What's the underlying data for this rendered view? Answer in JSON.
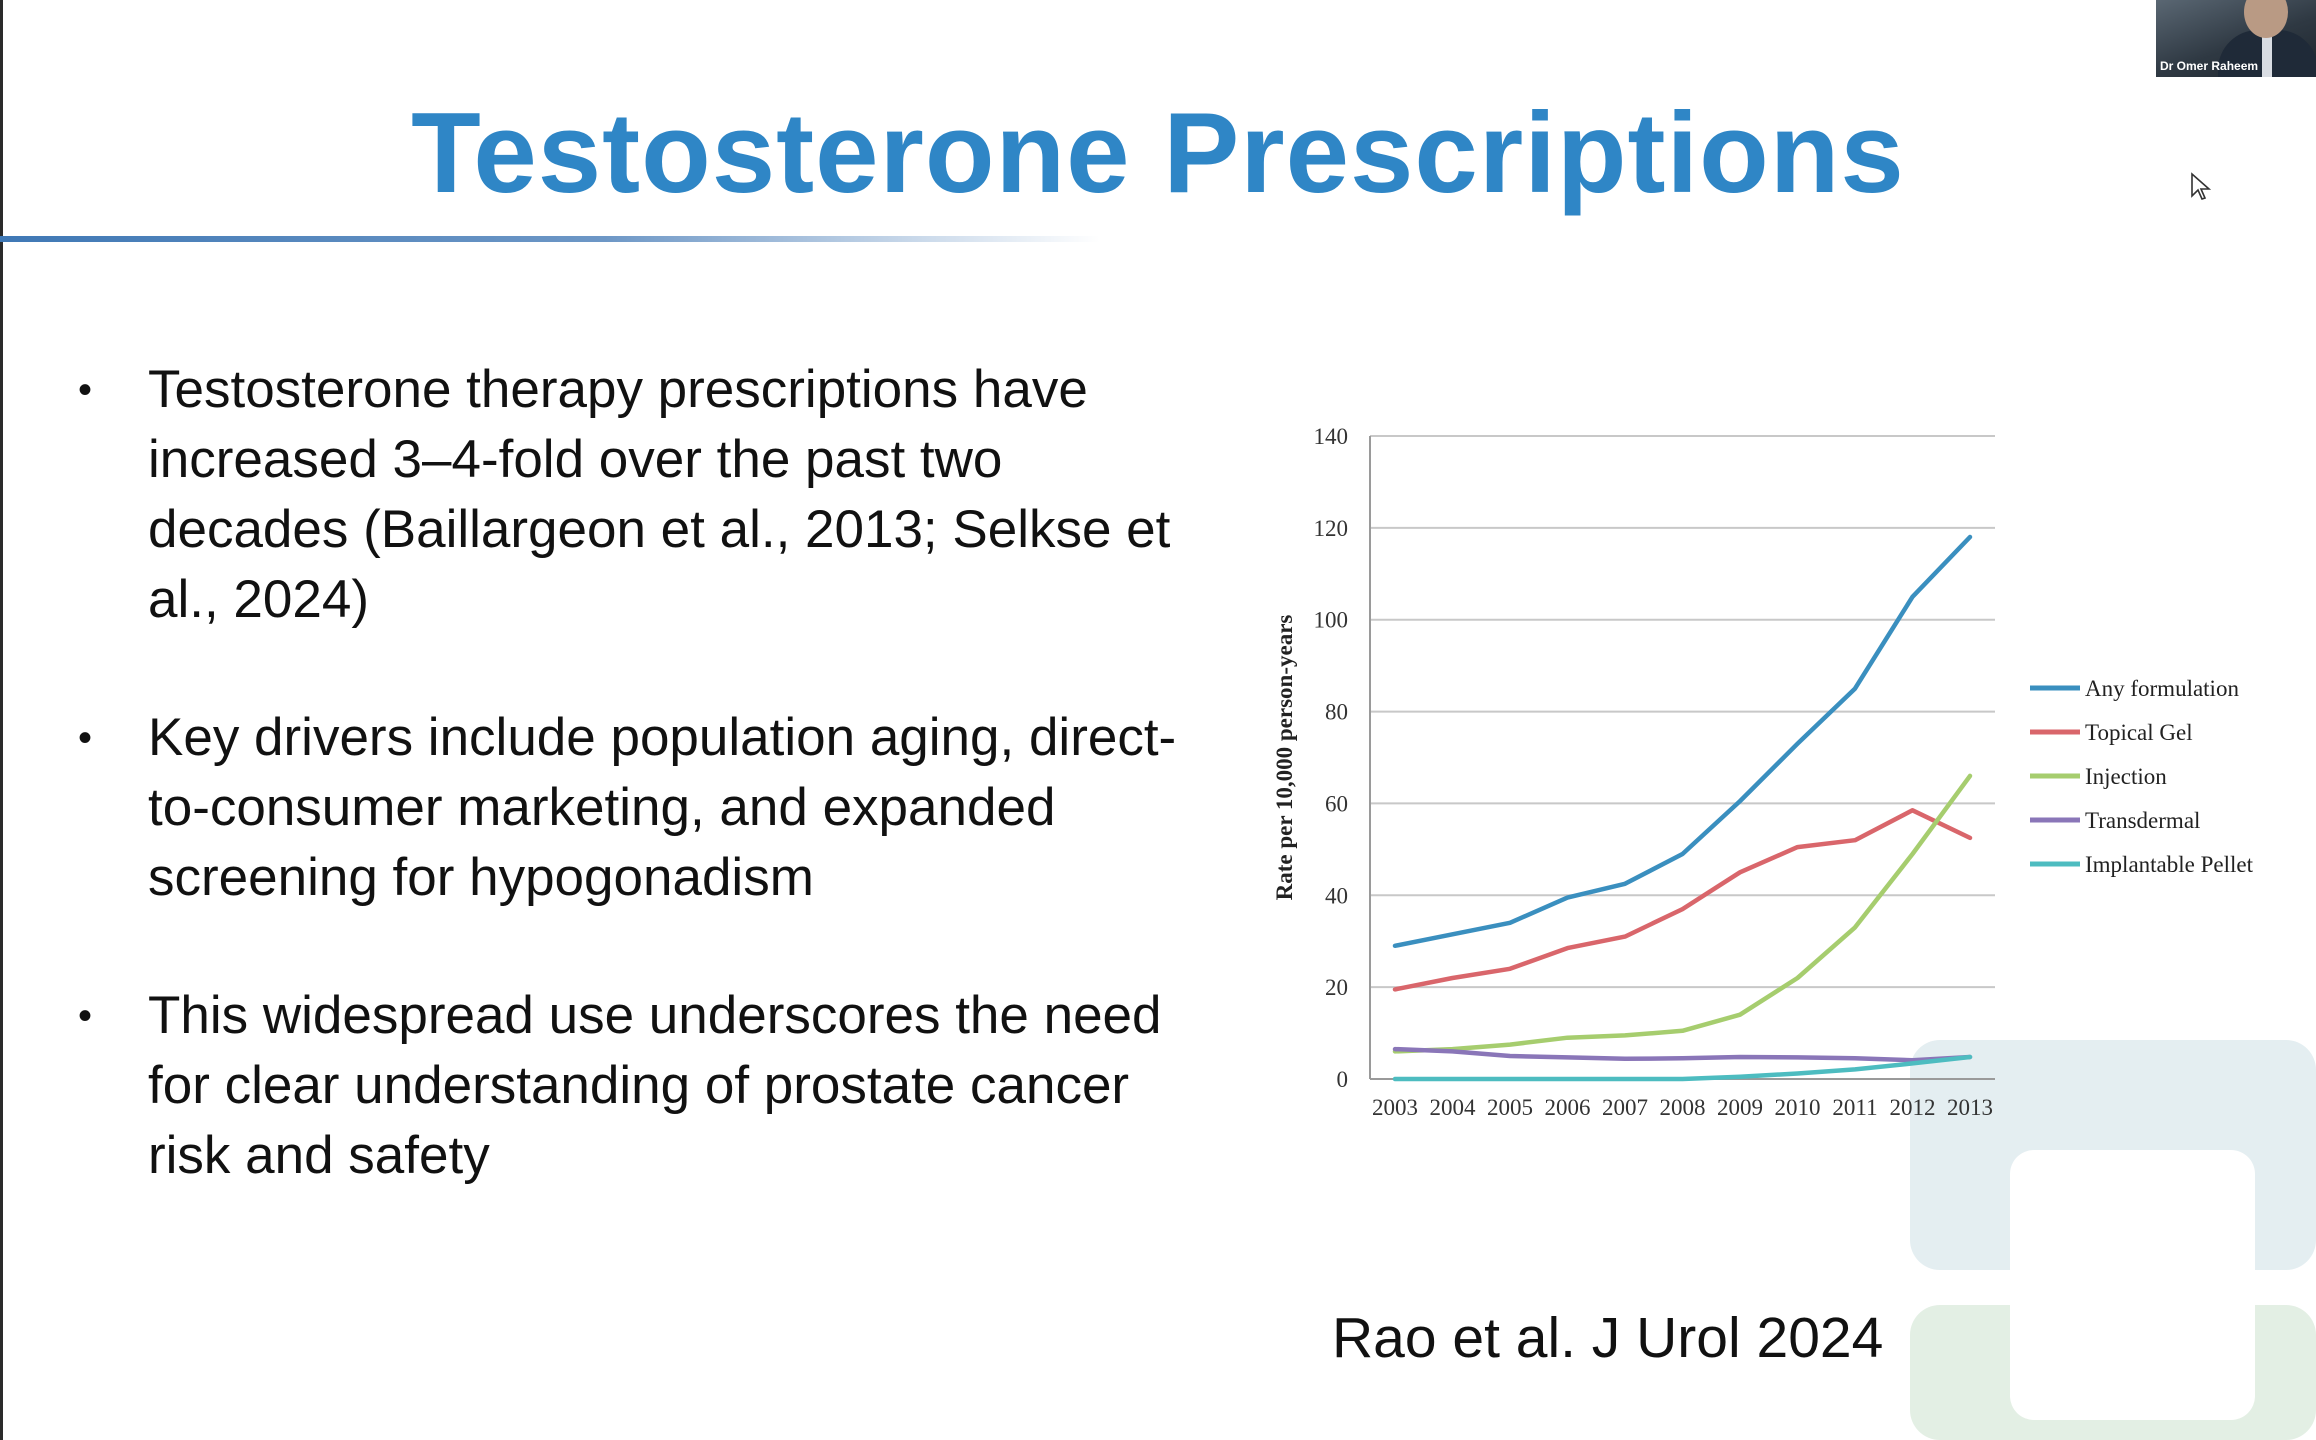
{
  "slide": {
    "title": "Testosterone Prescriptions",
    "bullets": [
      "Testosterone therapy prescriptions have increased 3–4-fold over the past two decades (Baillargeon et al., 2013; Selkse et al., 2024)",
      "Key drivers include population aging, direct-to-consumer marketing, and expanded screening for hypogonadism",
      "This widespread use underscores the need for clear understanding of prostate cancer risk and safety"
    ],
    "citation": "Rao et al. J Urol 2024"
  },
  "webcam": {
    "name": "Dr Omer Raheem"
  },
  "colors": {
    "title": "#2f86c6",
    "rule": "#3f78b5",
    "text": "#111111"
  },
  "chart_data": {
    "type": "line",
    "title": "",
    "xlabel": "",
    "ylabel": "Rate per 10,000 person-years",
    "x": [
      "2003",
      "2004",
      "2005",
      "2006",
      "2007",
      "2008",
      "2009",
      "2010",
      "2011",
      "2012",
      "2013"
    ],
    "ylim": [
      0,
      140
    ],
    "yticks": [
      0,
      20,
      40,
      60,
      80,
      100,
      120,
      140
    ],
    "grid": true,
    "legend_position": "right",
    "series": [
      {
        "name": "Any formulation",
        "color": "#3a8fbf",
        "values": [
          29,
          31.5,
          34,
          39.5,
          42.5,
          49,
          60.5,
          73,
          85,
          105,
          118
        ]
      },
      {
        "name": "Topical Gel",
        "color": "#d9666b",
        "values": [
          19.5,
          22,
          24,
          28.5,
          31,
          37,
          45,
          50.5,
          52,
          58.5,
          52.5
        ]
      },
      {
        "name": "Injection",
        "color": "#a6cd6e",
        "values": [
          6,
          6.5,
          7.5,
          9,
          9.5,
          10.5,
          14,
          22,
          33,
          49,
          66
        ]
      },
      {
        "name": "Transdermal",
        "color": "#8a76b8",
        "values": [
          6.5,
          6,
          5,
          4.7,
          4.4,
          4.5,
          4.8,
          4.7,
          4.5,
          4.1,
          4.8
        ]
      },
      {
        "name": "Implantable Pellet",
        "color": "#4dbcc0",
        "values": [
          0,
          0,
          0,
          0,
          0,
          0,
          0.5,
          1.2,
          2.1,
          3.4,
          4.8
        ]
      }
    ]
  }
}
